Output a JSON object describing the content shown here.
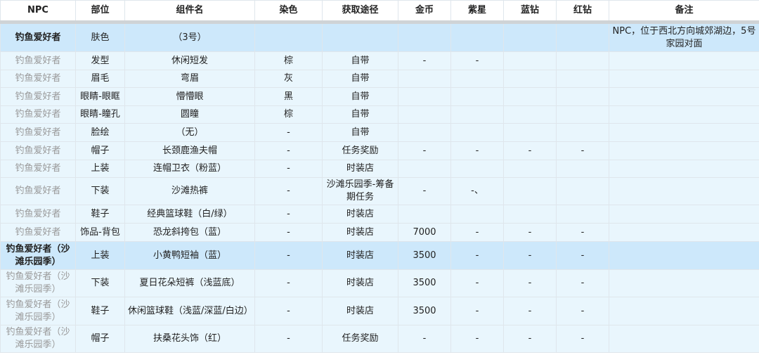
{
  "table": {
    "columns": [
      "NPC",
      "部位",
      "组件名",
      "染色",
      "获取途径",
      "金币",
      "紫星",
      "蓝钻",
      "红钻",
      "备注"
    ],
    "rows": [
      {
        "highlight": true,
        "cells": [
          "钓鱼爱好者",
          "肤色",
          "（3号）",
          "",
          "",
          "",
          "",
          "",
          "",
          "NPC，位于西北方向城郊湖边，5号家园对面"
        ]
      },
      {
        "highlight": false,
        "cells": [
          "钓鱼爱好者",
          "发型",
          "休闲短发",
          "棕",
          "自带",
          "-",
          "-",
          "",
          "",
          ""
        ]
      },
      {
        "highlight": false,
        "cells": [
          "钓鱼爱好者",
          "眉毛",
          "弯眉",
          "灰",
          "自带",
          "",
          "",
          "",
          "",
          ""
        ]
      },
      {
        "highlight": false,
        "cells": [
          "钓鱼爱好者",
          "眼睛-眼眶",
          "懵懵眼",
          "黑",
          "自带",
          "",
          "",
          "",
          "",
          ""
        ]
      },
      {
        "highlight": false,
        "cells": [
          "钓鱼爱好者",
          "眼睛-瞳孔",
          "圆瞳",
          "棕",
          "自带",
          "",
          "",
          "",
          "",
          ""
        ]
      },
      {
        "highlight": false,
        "cells": [
          "钓鱼爱好者",
          "脸绘",
          "（无）",
          "-",
          "自带",
          "",
          "",
          "",
          "",
          ""
        ]
      },
      {
        "highlight": false,
        "cells": [
          "钓鱼爱好者",
          "帽子",
          "长颈鹿渔夫帽",
          "-",
          "任务奖励",
          "-",
          "-",
          "-",
          "-",
          ""
        ]
      },
      {
        "highlight": false,
        "cells": [
          "钓鱼爱好者",
          "上装",
          "连帽卫衣（粉蓝）",
          "-",
          "时装店",
          "",
          "",
          "",
          "",
          ""
        ]
      },
      {
        "highlight": false,
        "cells": [
          "钓鱼爱好者",
          "下装",
          "沙滩热裤",
          "-",
          "沙滩乐园季-筹备期任务",
          "-",
          "-、",
          "",
          "",
          ""
        ]
      },
      {
        "highlight": false,
        "cells": [
          "钓鱼爱好者",
          "鞋子",
          "经典篮球鞋（白/绿）",
          "-",
          "时装店",
          "",
          "",
          "",
          "",
          ""
        ]
      },
      {
        "highlight": false,
        "cells": [
          "钓鱼爱好者",
          "饰品-背包",
          "恐龙斜挎包（蓝）",
          "-",
          "时装店",
          "7000",
          "-",
          "-",
          "-",
          ""
        ]
      },
      {
        "highlight": true,
        "cells": [
          "钓鱼爱好者（沙滩乐园季）",
          "上装",
          "小黄鸭短袖（蓝）",
          "-",
          "时装店",
          "3500",
          "-",
          "-",
          "-",
          ""
        ]
      },
      {
        "highlight": false,
        "cells": [
          "钓鱼爱好者（沙滩乐园季）",
          "下装",
          "夏日花朵短裤（浅蓝底）",
          "-",
          "时装店",
          "3500",
          "-",
          "-",
          "-",
          ""
        ]
      },
      {
        "highlight": false,
        "cells": [
          "钓鱼爱好者（沙滩乐园季）",
          "鞋子",
          "休闲篮球鞋（浅蓝/深蓝/白边）",
          "-",
          "时装店",
          "3500",
          "-",
          "-",
          "-",
          ""
        ]
      },
      {
        "highlight": false,
        "cells": [
          "钓鱼爱好者（沙滩乐园季）",
          "帽子",
          "扶桑花头饰（红）",
          "-",
          "任务奖励",
          "-",
          "-",
          "-",
          "-",
          ""
        ]
      }
    ]
  }
}
